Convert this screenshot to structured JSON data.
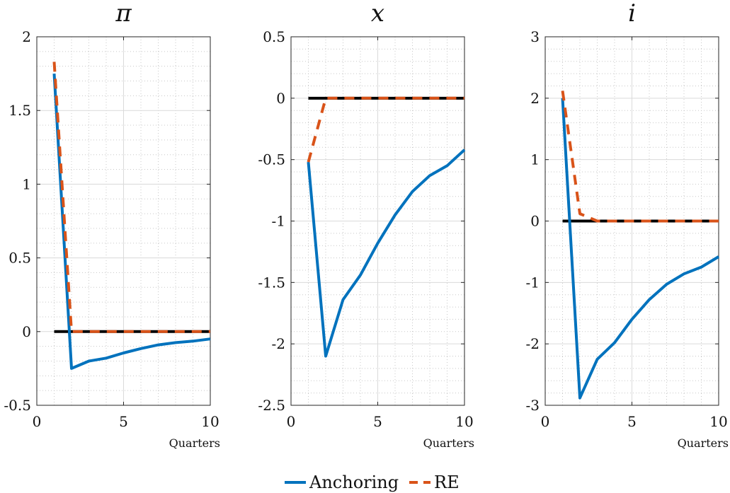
{
  "chart_data": [
    {
      "type": "line",
      "title": "π",
      "xlabel": "Quarters",
      "ylabel": "",
      "xlim": [
        0,
        10
      ],
      "ylim": [
        -0.5,
        2
      ],
      "x_ticks": [
        0,
        5,
        10
      ],
      "y_ticks": [
        2,
        1.5,
        1,
        0.5,
        0,
        -0.5
      ],
      "x_tick_labels": [
        "0",
        "5",
        "10"
      ],
      "y_tick_labels": [
        "2",
        "1.5",
        "1",
        "0.5",
        "0",
        "-0.5"
      ],
      "grid": "major and minor dotted",
      "series": [
        {
          "name": "Anchoring",
          "color": "#0072BD",
          "dash": "solid",
          "x": [
            1,
            2,
            3,
            4,
            5,
            6,
            7,
            8,
            9,
            10
          ],
          "values": [
            1.75,
            -0.25,
            -0.2,
            -0.18,
            -0.145,
            -0.115,
            -0.09,
            -0.075,
            -0.065,
            -0.05
          ]
        },
        {
          "name": "RE",
          "color": "#D95319",
          "dash": "dashed",
          "x": [
            1,
            2,
            3,
            4,
            5,
            6,
            7,
            8,
            9,
            10
          ],
          "values": [
            1.83,
            0,
            0,
            0,
            0,
            0,
            0,
            0,
            0,
            0
          ]
        }
      ],
      "zero_line": {
        "color": "#000000",
        "x": [
          1,
          10
        ],
        "value": 0
      }
    },
    {
      "type": "line",
      "title": "x",
      "xlabel": "Quarters",
      "ylabel": "",
      "xlim": [
        0,
        10
      ],
      "ylim": [
        -2.5,
        0.5
      ],
      "x_ticks": [
        0,
        5,
        10
      ],
      "y_ticks": [
        0.5,
        0,
        -0.5,
        -1,
        -1.5,
        -2,
        -2.5
      ],
      "x_tick_labels": [
        "0",
        "5",
        "10"
      ],
      "y_tick_labels": [
        "0.5",
        "0",
        "-0.5",
        "-1",
        "-1.5",
        "-2",
        "-2.5"
      ],
      "grid": "major and minor dotted",
      "series": [
        {
          "name": "Anchoring",
          "color": "#0072BD",
          "dash": "solid",
          "x": [
            1,
            2,
            3,
            4,
            5,
            6,
            7,
            8,
            9,
            10
          ],
          "values": [
            -0.52,
            -2.1,
            -1.64,
            -1.44,
            -1.18,
            -0.95,
            -0.76,
            -0.63,
            -0.55,
            -0.42
          ]
        },
        {
          "name": "RE",
          "color": "#D95319",
          "dash": "dashed",
          "x": [
            1,
            2,
            3,
            4,
            5,
            6,
            7,
            8,
            9,
            10
          ],
          "values": [
            -0.52,
            0,
            0,
            0,
            0,
            0,
            0,
            0,
            0,
            0
          ]
        }
      ],
      "zero_line": {
        "color": "#000000",
        "x": [
          1,
          10
        ],
        "value": 0
      }
    },
    {
      "type": "line",
      "title": "i",
      "xlabel": "Quarters",
      "ylabel": "",
      "xlim": [
        0,
        10
      ],
      "ylim": [
        -3,
        3
      ],
      "x_ticks": [
        0,
        5,
        10
      ],
      "y_ticks": [
        3,
        2,
        1,
        0,
        -1,
        -2,
        -3
      ],
      "x_tick_labels": [
        "0",
        "5",
        "10"
      ],
      "y_tick_labels": [
        "3",
        "2",
        "1",
        "0",
        "-1",
        "-2",
        "-3"
      ],
      "grid": "major and minor dotted",
      "series": [
        {
          "name": "Anchoring",
          "color": "#0072BD",
          "dash": "solid",
          "x": [
            1,
            2,
            3,
            4,
            5,
            6,
            7,
            8,
            9,
            10
          ],
          "values": [
            2.0,
            -2.88,
            -2.25,
            -1.98,
            -1.6,
            -1.28,
            -1.03,
            -0.86,
            -0.75,
            -0.58
          ]
        },
        {
          "name": "RE",
          "color": "#D95319",
          "dash": "dashed",
          "x": [
            1,
            2,
            3,
            4,
            5,
            6,
            7,
            8,
            9,
            10
          ],
          "values": [
            2.12,
            0.12,
            0,
            0,
            0,
            0,
            0,
            0,
            0,
            0
          ]
        }
      ],
      "zero_line": {
        "color": "#000000",
        "x": [
          1,
          10
        ],
        "value": 0
      }
    }
  ],
  "legend": {
    "placement": "bottom-center",
    "items": [
      {
        "label": "Anchoring",
        "color": "#0072BD",
        "dash": "solid"
      },
      {
        "label": "RE",
        "color": "#D95319",
        "dash": "dashed"
      }
    ]
  }
}
